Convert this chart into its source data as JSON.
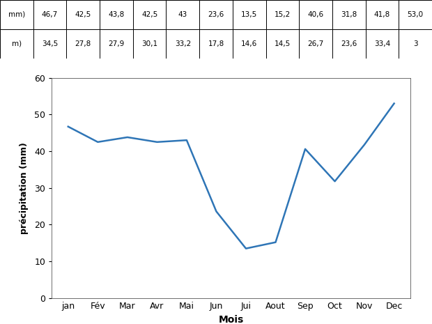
{
  "months": [
    "jan",
    "Fév",
    "Mar",
    "Avr",
    "Mai",
    "Jun",
    "Jui",
    "Aout",
    "Sep",
    "Oct",
    "Nov",
    "Dec"
  ],
  "mean_values": [
    46.7,
    42.5,
    43.8,
    42.5,
    43,
    23.6,
    13.5,
    15.2,
    40.6,
    31.8,
    41.8,
    53.0
  ],
  "std_values": [
    34.5,
    27.8,
    27.9,
    30.1,
    33.2,
    17.8,
    14.6,
    14.5,
    26.7,
    23.6,
    33.4,
    3
  ],
  "row1_label": "mm)",
  "row2_label": "m)",
  "line_color": "#2E75B6",
  "ylabel": "précipitation (mm)",
  "xlabel": "Mois",
  "ylim": [
    0,
    60
  ],
  "yticks": [
    0,
    10,
    20,
    30,
    40,
    50,
    60
  ],
  "linewidth": 1.8,
  "background_color": "#ffffff",
  "axes_facecolor": "#ffffff",
  "table_text_color": "#000000",
  "table_border_color": "#000000"
}
